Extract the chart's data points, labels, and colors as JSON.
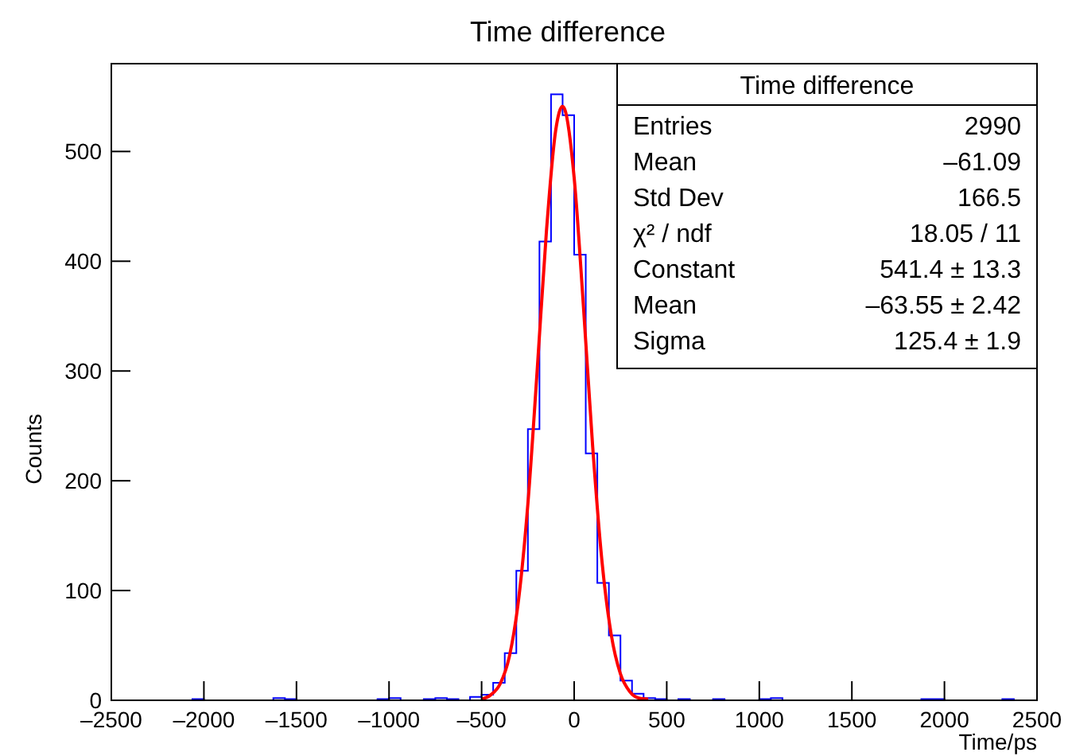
{
  "chart_data": {
    "type": "histogram",
    "title": "Time difference",
    "xlabel": "Time/ps",
    "ylabel": "Counts",
    "bins": [
      -2500,
      -2437.5,
      -2375,
      -2312.5,
      -2250,
      -2187.5,
      -2125,
      -2062.5,
      -2000,
      -1937.5,
      -1875,
      -1812.5,
      -1750,
      -1687.5,
      -1625,
      -1562.5,
      -1500,
      -1437.5,
      -1375,
      -1312.5,
      -1250,
      -1187.5,
      -1125,
      -1062.5,
      -1000,
      -937.5,
      -875,
      -812.5,
      -750,
      -687.5,
      -625,
      -562.5,
      -500,
      -437.5,
      -375,
      -312.5,
      -250,
      -187.5,
      -125,
      -62.5,
      0,
      62.5,
      125,
      187.5,
      250,
      312.5,
      375,
      437.5,
      500,
      562.5,
      625,
      687.5,
      750,
      812.5,
      875,
      937.5,
      1000,
      1062.5,
      1125,
      1187.5,
      1250,
      1312.5,
      1375,
      1437.5,
      1500,
      1562.5,
      1625,
      1687.5,
      1750,
      1812.5,
      1875,
      1937.5,
      2000,
      2062.5,
      2125,
      2187.5,
      2250,
      2312.5,
      2375,
      2437.5,
      2500
    ],
    "series": [
      {
        "color": "#0000ff",
        "values": [
          0,
          0,
          0,
          0,
          0,
          0,
          0,
          1,
          0,
          0,
          0,
          0,
          0,
          0,
          2,
          1,
          0,
          0,
          0,
          0,
          0,
          0,
          0,
          1,
          2,
          0,
          0,
          1,
          2,
          1,
          0,
          3,
          5,
          16,
          43,
          118,
          247,
          418,
          552,
          533,
          406,
          225,
          107,
          59,
          18,
          6,
          2,
          1,
          0,
          1,
          0,
          0,
          1,
          0,
          0,
          0,
          1,
          2,
          0,
          0,
          0,
          0,
          0,
          0,
          0,
          0,
          0,
          0,
          0,
          0,
          1,
          1,
          0,
          0,
          0,
          0,
          0,
          1,
          0,
          0
        ]
      },
      {
        "type": "line",
        "color": "#ff0000",
        "x": [
          -500,
          -450,
          -400,
          -350,
          -300,
          -250,
          -200,
          -150,
          -100,
          -63.55,
          -50,
          0,
          50,
          100,
          150,
          200,
          250,
          300,
          350,
          400
        ],
        "values": [
          1,
          5,
          15,
          40,
          92,
          179,
          300,
          427,
          519,
          541,
          538,
          476,
          359,
          231,
          127,
          60,
          24,
          8,
          2,
          1
        ]
      }
    ],
    "xlim": [
      -2500,
      2500
    ],
    "xticks": [
      {
        "value": -2500,
        "label": "–2500"
      },
      {
        "value": -2000,
        "label": "–2000"
      },
      {
        "value": -1500,
        "label": "–1500"
      },
      {
        "value": -1000,
        "label": "–1000"
      },
      {
        "value": -500,
        "label": "–500"
      },
      0,
      500,
      1000,
      1500,
      2000,
      {
        "value": 2500,
        "label": "2500"
      }
    ],
    "ylim": [
      0,
      580
    ],
    "yticks": [
      0,
      100,
      200,
      300,
      400,
      500
    ],
    "legend_title": "Time difference",
    "annotations": [
      "Entries\t2990",
      "Mean\t–61.09",
      "Std Dev\t166.5",
      "χ² / ndf\t18.05 / 11",
      "Constant\t541.4 ± 13.3",
      "Mean\t–63.55 ± 2.42",
      "Sigma\t125.4 ± 1.9"
    ],
    "grid": false,
    "marker": "none",
    "line_style": "solid"
  }
}
